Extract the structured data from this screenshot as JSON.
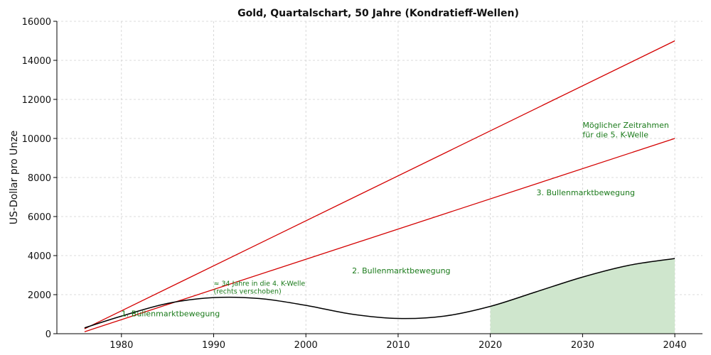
{
  "chart_data": {
    "type": "line",
    "title": "Gold, Quartalschart, 50 Jahre (Kondratieff-Wellen)",
    "xlabel": "",
    "ylabel": "US-Dollar pro Unze",
    "xlim": [
      1973,
      2043
    ],
    "ylim": [
      0,
      16000
    ],
    "xticks": [
      1980,
      1990,
      2000,
      2010,
      2020,
      2030,
      2040
    ],
    "yticks": [
      0,
      2000,
      4000,
      6000,
      8000,
      10000,
      12000,
      14000,
      16000
    ],
    "grid": true,
    "colors": {
      "trend": "#d40000",
      "price": "#000000",
      "fill": "#cfe6cd",
      "annotation": "#1a7a1a"
    },
    "series": [
      {
        "kind": "trendline",
        "x": [
          1976,
          2040
        ],
        "y": [
          250,
          15000
        ]
      },
      {
        "kind": "trendline",
        "x": [
          1976,
          2040
        ],
        "y": [
          100,
          10000
        ]
      },
      {
        "kind": "curve",
        "x": [
          1976,
          1980,
          1985,
          1990,
          1995,
          2000,
          2005,
          2010,
          2015,
          2020,
          2025,
          2030,
          2035,
          2040
        ],
        "y": [
          300,
          900,
          1550,
          1850,
          1800,
          1450,
          1000,
          780,
          900,
          1400,
          2150,
          2900,
          3500,
          3850
        ]
      }
    ],
    "shaded_region": {
      "x_from": 2020,
      "x_to": 2040
    },
    "annotations": [
      {
        "text": "1. Bullenmarktbewegung",
        "x": 1980,
        "y": 900
      },
      {
        "text": "≈ 34 Jahre in die 4. K-Welle",
        "x": 1990,
        "y": 2450
      },
      {
        "text": "(rechts verschoben)",
        "x": 1990,
        "y": 2050
      },
      {
        "text": "2. Bullenmarktbewegung",
        "x": 2005,
        "y": 3100
      },
      {
        "text": "3. Bullenmarktbewegung",
        "x": 2025,
        "y": 7100
      },
      {
        "text": "Möglicher Zeitrahmen",
        "x": 2030,
        "y": 10550
      },
      {
        "text": "für die 5. K-Welle",
        "x": 2030,
        "y": 10050
      }
    ]
  }
}
